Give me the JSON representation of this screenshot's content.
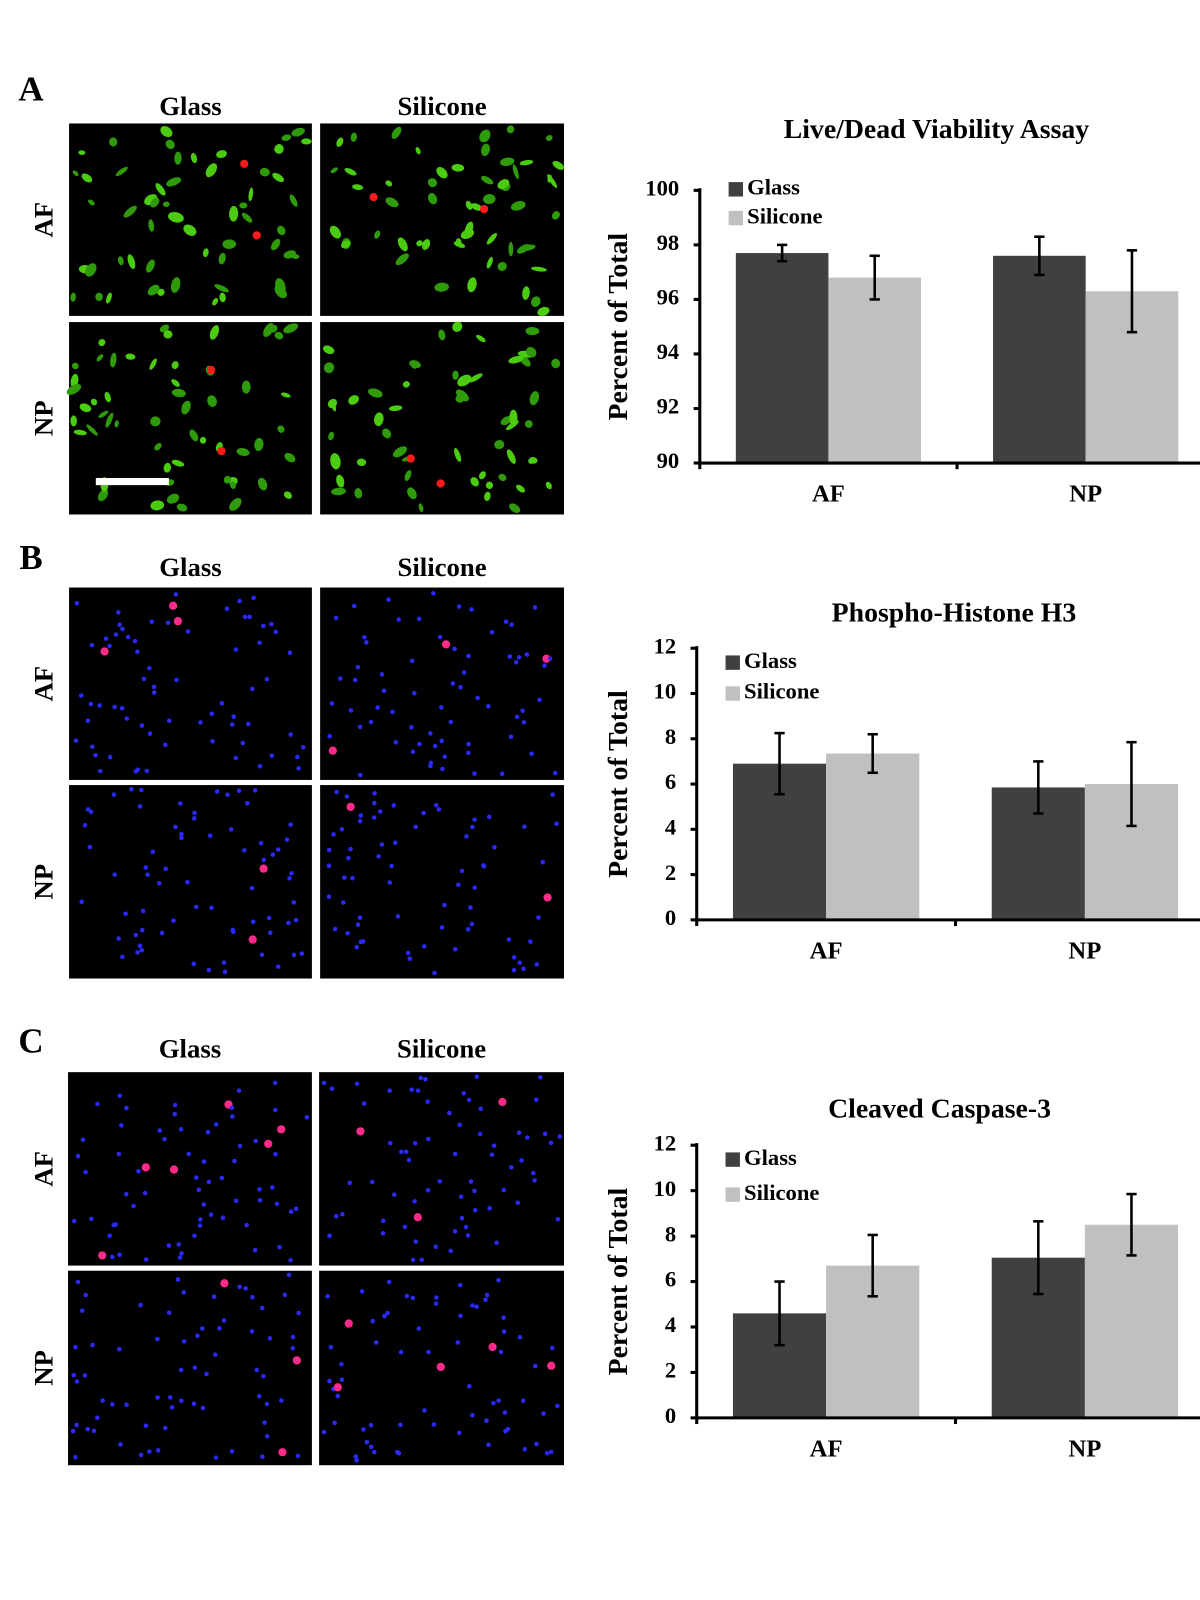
{
  "figure": {
    "panels": [
      {
        "label": "A",
        "columns": [
          "Glass",
          "Silicone"
        ],
        "rows": [
          "AF",
          "NP"
        ]
      },
      {
        "label": "B",
        "columns": [
          "Glass",
          "Silicone"
        ],
        "rows": [
          "AF",
          "NP"
        ]
      },
      {
        "label": "C",
        "columns": [
          "Glass",
          "Silicone"
        ],
        "rows": [
          "AF",
          "NP"
        ]
      }
    ]
  },
  "chart_data": [
    {
      "type": "bar",
      "title": "Live/Dead Viability Assay",
      "y_label": "Percent of Total",
      "categories": [
        "AF",
        "NP"
      ],
      "series": [
        {
          "name": "Glass",
          "color": "#404040",
          "values": [
            97.7,
            97.6
          ],
          "errors": [
            0.3,
            0.7
          ]
        },
        {
          "name": "Silicone",
          "color": "#c0c0c0",
          "values": [
            96.8,
            96.3
          ],
          "errors": [
            0.8,
            1.5
          ]
        }
      ],
      "ylim": [
        90,
        100
      ],
      "yticks": [
        90,
        92,
        94,
        96,
        98,
        100
      ],
      "legend": "upper left"
    },
    {
      "type": "bar",
      "title": "Phospho-Histone H3",
      "y_label": "Percent of Total",
      "categories": [
        "AF",
        "NP"
      ],
      "series": [
        {
          "name": "Glass",
          "color": "#404040",
          "values": [
            6.9,
            5.85
          ],
          "errors": [
            1.35,
            1.15
          ]
        },
        {
          "name": "Silicone",
          "color": "#c0c0c0",
          "values": [
            7.35,
            6.0
          ],
          "errors": [
            0.85,
            1.85
          ]
        }
      ],
      "ylim": [
        0,
        12
      ],
      "yticks": [
        0,
        2,
        4,
        6,
        8,
        10,
        12
      ],
      "legend": "upper left"
    },
    {
      "type": "bar",
      "title": "Cleaved Caspase-3",
      "y_label": "Percent of Total",
      "categories": [
        "AF",
        "NP"
      ],
      "series": [
        {
          "name": "Glass",
          "color": "#404040",
          "values": [
            4.6,
            7.05
          ],
          "errors": [
            1.4,
            1.6
          ]
        },
        {
          "name": "Silicone",
          "color": "#c0c0c0",
          "values": [
            6.7,
            8.5
          ],
          "errors": [
            1.35,
            1.35
          ]
        }
      ],
      "ylim": [
        0,
        12
      ],
      "yticks": [
        0,
        2,
        4,
        6,
        8,
        10,
        12
      ],
      "legend": "upper left"
    }
  ]
}
